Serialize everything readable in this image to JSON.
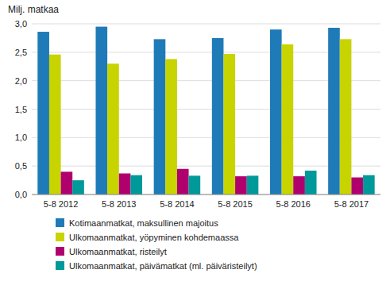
{
  "chart_data": {
    "type": "bar",
    "ylabel": "Milj. matkaa",
    "categories": [
      "5-8 2012",
      "5-8 2013",
      "5-8 2014",
      "5-8 2015",
      "5-8 2016",
      "5-8 2017"
    ],
    "series": [
      {
        "name": "Kotimaanmatkat, maksullinen majoitus",
        "color": "#1F7BB8",
        "values": [
          2.86,
          2.95,
          2.73,
          2.75,
          2.9,
          2.93
        ]
      },
      {
        "name": "Ulkomaanmatkat, yöpyminen kohdemaassa",
        "color": "#C8D400",
        "values": [
          2.46,
          2.3,
          2.38,
          2.47,
          2.64,
          2.73
        ]
      },
      {
        "name": "Ulkomaanmatkat, risteilyt",
        "color": "#B0006E",
        "values": [
          0.4,
          0.37,
          0.45,
          0.32,
          0.32,
          0.3
        ]
      },
      {
        "name": "Ulkomaanmatkat, päivämatkat (ml. päiväristeilyt)",
        "color": "#009999",
        "values": [
          0.25,
          0.34,
          0.33,
          0.33,
          0.42,
          0.34
        ]
      }
    ],
    "ylim": [
      0,
      3.0
    ],
    "yticks": [
      {
        "value": 0.0,
        "label": "0,0"
      },
      {
        "value": 0.5,
        "label": "0,5"
      },
      {
        "value": 1.0,
        "label": "1,0"
      },
      {
        "value": 1.5,
        "label": "1,5"
      },
      {
        "value": 2.0,
        "label": "2,0"
      },
      {
        "value": 2.5,
        "label": "2,5"
      },
      {
        "value": 3.0,
        "label": "3,0"
      }
    ],
    "grid": true,
    "legend": "bottom"
  }
}
